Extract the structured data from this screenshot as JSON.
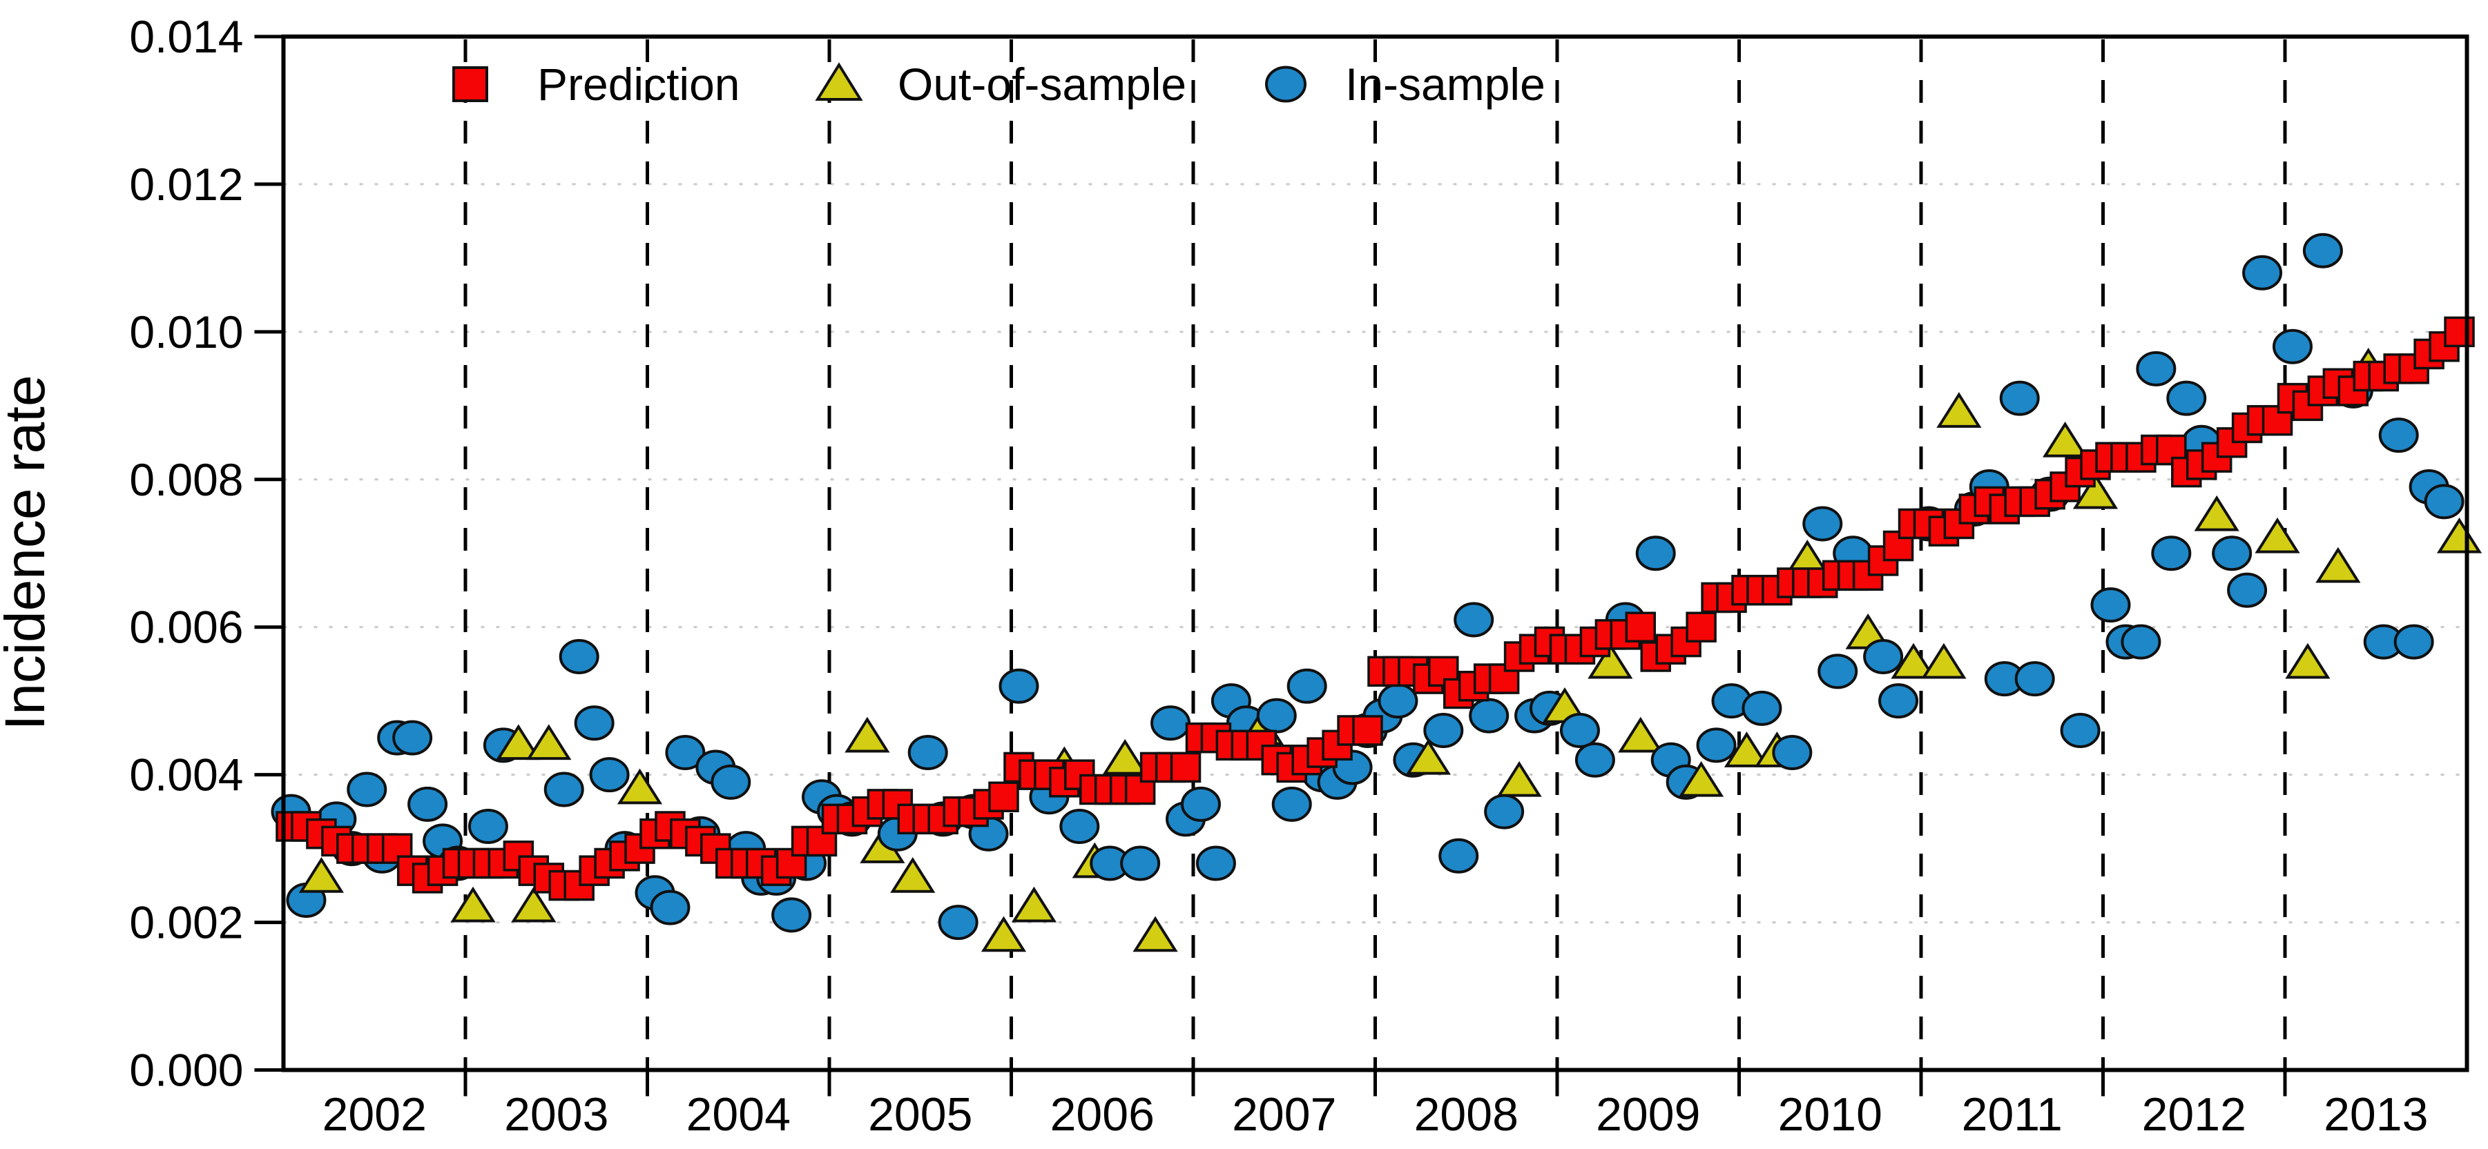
{
  "figure": {
    "background": "#ffffff",
    "axis_color": "#000000",
    "gridline_color": "#c9c9c9",
    "dashed_line_color": "#000000"
  },
  "legend": {
    "position": "top-left-inside",
    "items": [
      {
        "label": "Prediction",
        "marker": "square",
        "color": "#f50505"
      },
      {
        "label": "Out-of-sample",
        "marker": "triangle",
        "color": "#d3ce13"
      },
      {
        "label": "In-sample",
        "marker": "circle",
        "color": "#1d87c8"
      }
    ]
  },
  "chart_data": {
    "type": "scatter",
    "title": "",
    "xlabel": "",
    "ylabel": "Incidence rate",
    "ylim": [
      0,
      0.014
    ],
    "ytick_step": 0.002,
    "ytick_labels": [
      "0.000",
      "0.002",
      "0.004",
      "0.006",
      "0.008",
      "0.010",
      "0.012",
      "0.014"
    ],
    "grid": "horizontal-dotted",
    "year_separators": "vertical-dashed",
    "x_years": [
      2002,
      2003,
      2004,
      2005,
      2006,
      2007,
      2008,
      2009,
      2010,
      2011,
      2012,
      2013
    ],
    "months_per_year": 12,
    "series": [
      {
        "name": "Prediction",
        "marker": "square",
        "color": "#f50505",
        "stroke": "#111111",
        "values_by_year": [
          {
            "year": 2002,
            "values": [
              0.0033,
              0.0033,
              0.0032,
              0.0031,
              0.003,
              0.003,
              0.003,
              0.003,
              0.0027,
              0.0026,
              0.0027,
              0.0028
            ]
          },
          {
            "year": 2003,
            "values": [
              0.0028,
              0.0028,
              0.0028,
              0.0029,
              0.0027,
              0.0026,
              0.0025,
              0.0025,
              0.0027,
              0.0028,
              0.0029,
              0.003
            ]
          },
          {
            "year": 2004,
            "values": [
              0.0032,
              0.0033,
              0.0032,
              0.0031,
              0.003,
              0.0028,
              0.0028,
              0.0028,
              0.0027,
              0.0028,
              0.0031,
              0.0031
            ]
          },
          {
            "year": 2005,
            "values": [
              0.0034,
              0.0034,
              0.0035,
              0.0036,
              0.0036,
              0.0034,
              0.0034,
              0.0034,
              0.0035,
              0.0035,
              0.0036,
              0.0037
            ]
          },
          {
            "year": 2006,
            "values": [
              0.0041,
              0.004,
              0.004,
              0.0039,
              0.004,
              0.0038,
              0.0038,
              0.0038,
              0.0038,
              0.0041,
              0.0041,
              0.0041
            ]
          },
          {
            "year": 2007,
            "values": [
              0.0045,
              0.0045,
              0.0044,
              0.0044,
              0.0044,
              0.0042,
              0.0041,
              0.0042,
              0.0043,
              0.0044,
              0.0046,
              0.0046
            ]
          },
          {
            "year": 2008,
            "values": [
              0.0054,
              0.0054,
              0.0054,
              0.0053,
              0.0054,
              0.0051,
              0.0052,
              0.0053,
              0.0053,
              0.0056,
              0.0057,
              0.0058
            ]
          },
          {
            "year": 2009,
            "values": [
              0.0057,
              0.0057,
              0.0058,
              0.0059,
              0.0059,
              0.006,
              0.0056,
              0.0057,
              0.0058,
              0.006,
              0.0064,
              0.0064
            ]
          },
          {
            "year": 2010,
            "values": [
              0.0065,
              0.0065,
              0.0065,
              0.0066,
              0.0066,
              0.0066,
              0.0067,
              0.0067,
              0.0067,
              0.0069,
              0.0071,
              0.0074
            ]
          },
          {
            "year": 2011,
            "values": [
              0.0074,
              0.0073,
              0.0074,
              0.0076,
              0.0077,
              0.0076,
              0.0077,
              0.0077,
              0.0078,
              0.0079,
              0.0081,
              0.0082
            ]
          },
          {
            "year": 2012,
            "values": [
              0.0083,
              0.0083,
              0.0083,
              0.0084,
              0.0084,
              0.0081,
              0.0082,
              0.0083,
              0.0085,
              0.0087,
              0.0088,
              0.0088
            ]
          },
          {
            "year": 2013,
            "values": [
              0.0091,
              0.009,
              0.0092,
              0.0093,
              0.0092,
              0.0094,
              0.0094,
              0.0095,
              0.0095,
              0.0097,
              0.0098,
              0.01
            ]
          }
        ]
      },
      {
        "name": "Observations",
        "note": "one observation per month; type 'in' = In-sample (blue circle), 'out' = Out-of-sample (yellow triangle)",
        "in_color": "#1d87c8",
        "out_color": "#d3ce13",
        "stroke": "#111111",
        "points_by_year": [
          {
            "year": 2002,
            "points": [
              [
                "in",
                0.0035
              ],
              [
                "in",
                0.0023
              ],
              [
                "out",
                0.0026
              ],
              [
                "in",
                0.0034
              ],
              [
                "in",
                0.003
              ],
              [
                "in",
                0.0038
              ],
              [
                "in",
                0.0029
              ],
              [
                "in",
                0.0045
              ],
              [
                "in",
                0.0045
              ],
              [
                "in",
                0.0036
              ],
              [
                "in",
                0.0031
              ],
              [
                "in",
                0.0028
              ]
            ]
          },
          {
            "year": 2003,
            "points": [
              [
                "out",
                0.0022
              ],
              [
                "in",
                0.0033
              ],
              [
                "in",
                0.0044
              ],
              [
                "out",
                0.0044
              ],
              [
                "out",
                0.0022
              ],
              [
                "out",
                0.0044
              ],
              [
                "in",
                0.0038
              ],
              [
                "in",
                0.0056
              ],
              [
                "in",
                0.0047
              ],
              [
                "in",
                0.004
              ],
              [
                "in",
                0.003
              ],
              [
                "out",
                0.0038
              ]
            ]
          },
          {
            "year": 2004,
            "points": [
              [
                "in",
                0.0024
              ],
              [
                "in",
                0.0022
              ],
              [
                "in",
                0.0043
              ],
              [
                "in",
                0.0032
              ],
              [
                "in",
                0.0041
              ],
              [
                "in",
                0.0039
              ],
              [
                "in",
                0.003
              ],
              [
                "in",
                0.0026
              ],
              [
                "in",
                0.0026
              ],
              [
                "in",
                0.0021
              ],
              [
                "in",
                0.0028
              ],
              [
                "in",
                0.0037
              ]
            ]
          },
          {
            "year": 2005,
            "points": [
              [
                "in",
                0.0035
              ],
              [
                "in",
                0.0034
              ],
              [
                "out",
                0.0045
              ],
              [
                "out",
                0.003
              ],
              [
                "in",
                0.0032
              ],
              [
                "out",
                0.0026
              ],
              [
                "in",
                0.0043
              ],
              [
                "in",
                0.0034
              ],
              [
                "in",
                0.002
              ],
              [
                "in",
                0.0035
              ],
              [
                "in",
                0.0032
              ],
              [
                "out",
                0.0018
              ]
            ]
          },
          {
            "year": 2006,
            "points": [
              [
                "in",
                0.0052
              ],
              [
                "out",
                0.0022
              ],
              [
                "in",
                0.0037
              ],
              [
                "out",
                0.0041
              ],
              [
                "in",
                0.0033
              ],
              [
                "out",
                0.0028
              ],
              [
                "in",
                0.0028
              ],
              [
                "out",
                0.0042
              ],
              [
                "in",
                0.0028
              ],
              [
                "out",
                0.0018
              ],
              [
                "in",
                0.0047
              ],
              [
                "in",
                0.0034
              ]
            ]
          },
          {
            "year": 2007,
            "points": [
              [
                "in",
                0.0036
              ],
              [
                "in",
                0.0028
              ],
              [
                "in",
                0.005
              ],
              [
                "in",
                0.0047
              ],
              [
                "out",
                0.0046
              ],
              [
                "in",
                0.0048
              ],
              [
                "in",
                0.0036
              ],
              [
                "in",
                0.0052
              ],
              [
                "in",
                0.004
              ],
              [
                "in",
                0.0039
              ],
              [
                "in",
                0.0041
              ],
              [
                "in",
                0.0046
              ]
            ]
          },
          {
            "year": 2008,
            "points": [
              [
                "in",
                0.0048
              ],
              [
                "in",
                0.005
              ],
              [
                "in",
                0.0042
              ],
              [
                "out",
                0.0042
              ],
              [
                "in",
                0.0046
              ],
              [
                "in",
                0.0029
              ],
              [
                "in",
                0.0061
              ],
              [
                "in",
                0.0048
              ],
              [
                "in",
                0.0035
              ],
              [
                "out",
                0.0039
              ],
              [
                "in",
                0.0048
              ],
              [
                "in",
                0.0049
              ]
            ]
          },
          {
            "year": 2009,
            "points": [
              [
                "out",
                0.0049
              ],
              [
                "in",
                0.0046
              ],
              [
                "in",
                0.0042
              ],
              [
                "out",
                0.0055
              ],
              [
                "in",
                0.0061
              ],
              [
                "out",
                0.0045
              ],
              [
                "in",
                0.007
              ],
              [
                "in",
                0.0042
              ],
              [
                "in",
                0.0039
              ],
              [
                "out",
                0.0039
              ],
              [
                "in",
                0.0044
              ],
              [
                "in",
                0.005
              ]
            ]
          },
          {
            "year": 2010,
            "points": [
              [
                "out",
                0.0043
              ],
              [
                "in",
                0.0049
              ],
              [
                "out",
                0.0043
              ],
              [
                "in",
                0.0043
              ],
              [
                "out",
                0.0069
              ],
              [
                "in",
                0.0074
              ],
              [
                "in",
                0.0054
              ],
              [
                "in",
                0.007
              ],
              [
                "out",
                0.0059
              ],
              [
                "in",
                0.0056
              ],
              [
                "in",
                0.005
              ],
              [
                "out",
                0.0055
              ]
            ]
          },
          {
            "year": 2011,
            "points": [
              [
                "in",
                0.0074
              ],
              [
                "out",
                0.0055
              ],
              [
                "out",
                0.0089
              ],
              [
                "in",
                0.0076
              ],
              [
                "in",
                0.0079
              ],
              [
                "in",
                0.0053
              ],
              [
                "in",
                0.0091
              ],
              [
                "in",
                0.0053
              ],
              [
                "in",
                0.0078
              ],
              [
                "out",
                0.0085
              ],
              [
                "in",
                0.0046
              ],
              [
                "out",
                0.0078
              ]
            ]
          },
          {
            "year": 2012,
            "points": [
              [
                "in",
                0.0063
              ],
              [
                "in",
                0.0058
              ],
              [
                "in",
                0.0058
              ],
              [
                "in",
                0.0095
              ],
              [
                "in",
                0.007
              ],
              [
                "in",
                0.0091
              ],
              [
                "in",
                0.0085
              ],
              [
                "out",
                0.0075
              ],
              [
                "in",
                0.007
              ],
              [
                "in",
                0.0065
              ],
              [
                "in",
                0.0108
              ],
              [
                "out",
                0.0072
              ]
            ]
          },
          {
            "year": 2013,
            "points": [
              [
                "in",
                0.0098
              ],
              [
                "out",
                0.0055
              ],
              [
                "in",
                0.0111
              ],
              [
                "out",
                0.0068
              ],
              [
                "in",
                0.0092
              ],
              [
                "out",
                0.0095
              ],
              [
                "in",
                0.0058
              ],
              [
                "in",
                0.0086
              ],
              [
                "in",
                0.0058
              ],
              [
                "in",
                0.0079
              ],
              [
                "in",
                0.0077
              ],
              [
                "out",
                0.0072
              ]
            ]
          }
        ]
      }
    ]
  }
}
